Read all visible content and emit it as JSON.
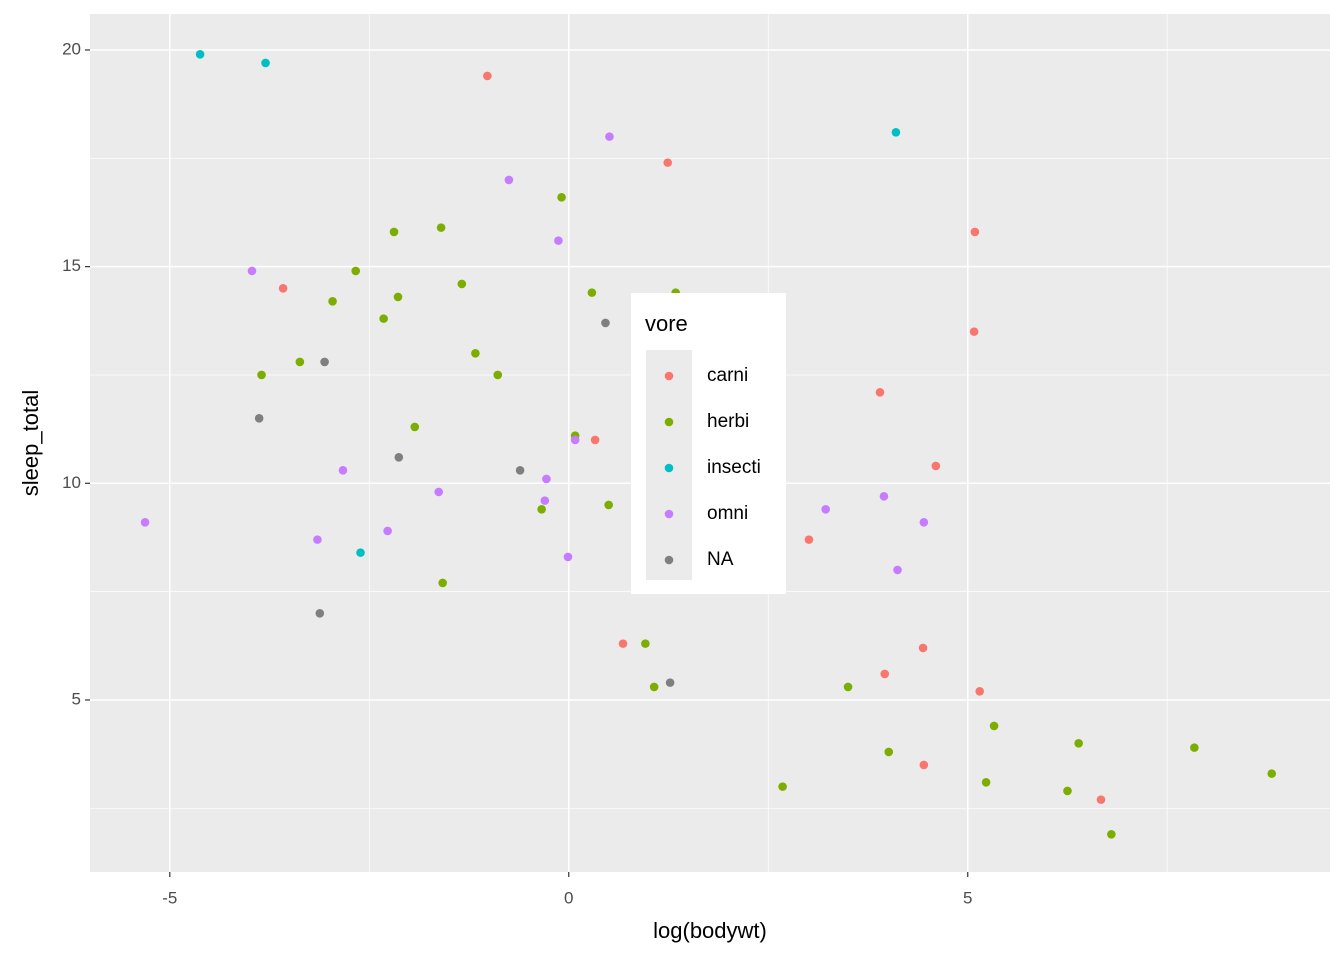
{
  "chart_data": {
    "type": "scatter",
    "x_label": "log(bodywt)",
    "y_label": "sleep_total",
    "legend_title": "vore",
    "xlim": [
      -6.0,
      9.54
    ],
    "ylim": [
      1.03,
      20.83
    ],
    "xticks": [
      -5,
      0,
      5
    ],
    "yticks": [
      5,
      10,
      15,
      20
    ],
    "xticks_minor": [
      -2.5,
      2.5,
      7.5
    ],
    "yticks_minor": [
      2.5,
      7.5,
      12.5,
      17.5
    ],
    "grid": true,
    "legend_position": "inside",
    "series": [
      {
        "name": "carni",
        "color": "#F8766D",
        "x": [
          -1.02,
          1.24,
          -3.58,
          5.09,
          5.08,
          3.9,
          0.33,
          4.6,
          3.01,
          0.68,
          4.44,
          3.96,
          5.15,
          4.45,
          6.67
        ],
        "values": [
          19.4,
          17.4,
          14.5,
          15.8,
          13.5,
          12.1,
          11.0,
          10.4,
          8.7,
          6.3,
          6.2,
          5.6,
          5.2,
          3.5,
          2.7
        ]
      },
      {
        "name": "herbi",
        "color": "#7CAE00",
        "x": [
          -0.09,
          -2.19,
          -1.6,
          -2.67,
          -2.96,
          -2.14,
          -1.34,
          0.29,
          1.34,
          -2.32,
          -1.17,
          -3.37,
          -3.85,
          -0.89,
          -1.93,
          0.08,
          -0.34,
          0.5,
          -1.58,
          0.96,
          1.07,
          3.5,
          4.01,
          2.68,
          5.33,
          5.23,
          6.39,
          6.25,
          7.84,
          8.81,
          6.8
        ],
        "values": [
          16.6,
          15.8,
          15.9,
          14.9,
          14.2,
          14.3,
          14.6,
          14.4,
          14.4,
          13.8,
          13.0,
          12.8,
          12.5,
          12.5,
          11.3,
          11.1,
          9.4,
          9.5,
          7.7,
          6.3,
          5.3,
          5.3,
          3.8,
          3.0,
          4.4,
          3.1,
          4.0,
          2.9,
          3.9,
          3.3,
          1.9
        ]
      },
      {
        "name": "insecti",
        "color": "#00BFC4",
        "x": [
          -4.62,
          -3.8,
          4.1,
          -2.61
        ],
        "values": [
          19.9,
          19.7,
          18.1,
          8.4
        ]
      },
      {
        "name": "omni",
        "color": "#C77CFF",
        "x": [
          0.51,
          -0.75,
          -0.13,
          -3.97,
          0.08,
          -0.28,
          -2.83,
          -1.63,
          -0.3,
          3.95,
          3.22,
          4.45,
          -5.31,
          -2.27,
          -3.15,
          -0.01,
          4.12
        ],
        "values": [
          18.0,
          17.0,
          15.6,
          14.9,
          11.0,
          10.1,
          10.3,
          9.8,
          9.6,
          9.7,
          9.4,
          9.1,
          9.1,
          8.9,
          8.7,
          8.3,
          8.0
        ]
      },
      {
        "name": "NA",
        "color": "#7F7F7F",
        "x": [
          0.46,
          -3.06,
          -3.88,
          -2.13,
          -0.61,
          -3.12,
          1.27
        ],
        "values": [
          13.7,
          12.8,
          11.5,
          10.6,
          10.3,
          7.0,
          5.4
        ]
      }
    ]
  }
}
